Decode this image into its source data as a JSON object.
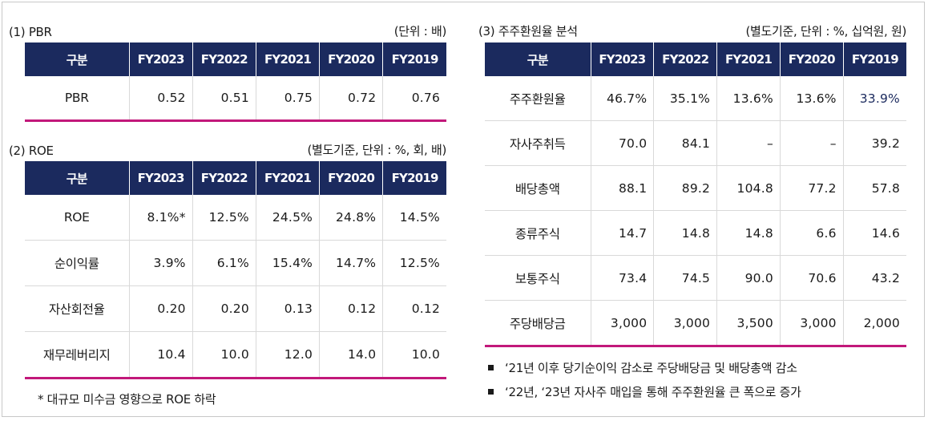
{
  "pbr": {
    "title": "(1) PBR",
    "unit": "(단위 : 배)",
    "headers": [
      "구분",
      "FY2023",
      "FY2022",
      "FY2021",
      "FY2020",
      "FY2019"
    ],
    "rows": [
      {
        "label": "PBR",
        "values": [
          "0.52",
          "0.51",
          "0.75",
          "0.72",
          "0.76"
        ]
      }
    ]
  },
  "roe": {
    "title": "(2) ROE",
    "unit": "(별도기준, 단위 : %, 회, 배)",
    "headers": [
      "구분",
      "FY2023",
      "FY2022",
      "FY2021",
      "FY2020",
      "FY2019"
    ],
    "rows": [
      {
        "label": "ROE",
        "values": [
          "8.1%*",
          "12.5%",
          "24.5%",
          "24.8%",
          "14.5%"
        ]
      },
      {
        "label": "순이익률",
        "values": [
          "3.9%",
          "6.1%",
          "15.4%",
          "14.7%",
          "12.5%"
        ]
      },
      {
        "label": "자산회전율",
        "values": [
          "0.20",
          "0.20",
          "0.13",
          "0.12",
          "0.12"
        ]
      },
      {
        "label": "재무레버리지",
        "values": [
          "10.4",
          "10.0",
          "12.0",
          "14.0",
          "10.0"
        ]
      }
    ],
    "footnote": "* 대규모 미수금 영향으로 ROE 하락"
  },
  "shareholder_return": {
    "title": "(3) 주주환원율 분석",
    "unit": "(별도기준, 단위 : %, 십억원, 원)",
    "headers": [
      "구분",
      "FY2023",
      "FY2022",
      "FY2021",
      "FY2020",
      "FY2019"
    ],
    "rows": [
      {
        "label": "주주환원율",
        "values": [
          "46.7%",
          "35.1%",
          "13.6%",
          "13.6%",
          "33.9%"
        ]
      },
      {
        "label": "자사주취득",
        "values": [
          "70.0",
          "84.1",
          "–",
          "–",
          "39.2"
        ]
      },
      {
        "label": "배당총액",
        "values": [
          "88.1",
          "89.2",
          "104.8",
          "77.2",
          "57.8"
        ]
      },
      {
        "label": "종류주식",
        "values": [
          "14.7",
          "14.8",
          "14.8",
          "6.6",
          "14.6"
        ]
      },
      {
        "label": "보통주식",
        "values": [
          "73.4",
          "74.5",
          "90.0",
          "70.6",
          "43.2"
        ]
      },
      {
        "label": "주당배당금",
        "values": [
          "3,000",
          "3,000",
          "3,500",
          "3,000",
          "2,000"
        ]
      }
    ],
    "notes": [
      "‘21년 이후 당기순이익 감소로 주당배당금 및 배당총액 감소",
      "‘22년, ‘23년 자사주 매입을 통해 주주환원율 큰 폭으로 증가"
    ]
  },
  "colors": {
    "header_bg": "#1b2a5e",
    "rule": "#c2187a",
    "highlight_text": "#1b2a5e"
  }
}
